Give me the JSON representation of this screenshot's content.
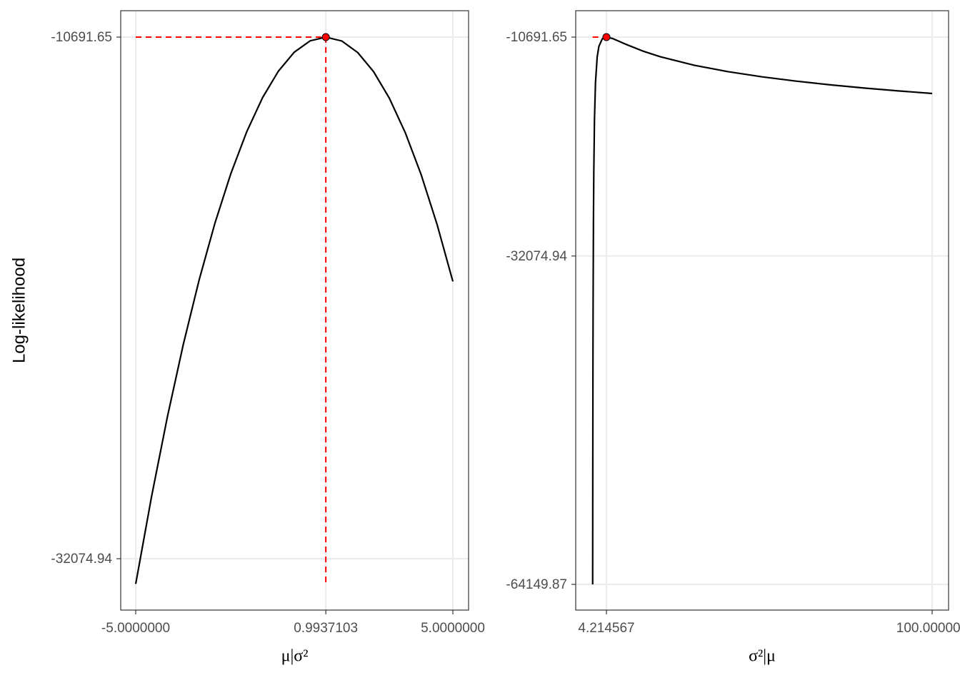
{
  "chart_data": [
    {
      "type": "line",
      "xlabel": "μ|σ²",
      "ylabel": "Log-likelihood",
      "x": [
        -5,
        -4.5,
        -4,
        -3.5,
        -3,
        -2.5,
        -2,
        -1.5,
        -1,
        -0.5,
        0,
        0.5,
        0.9937103,
        1.5,
        2,
        2.5,
        3,
        3.5,
        4,
        4.5,
        5
      ],
      "series": [
        {
          "color": "#000000",
          "values": [
            -33109,
            -29525,
            -26252,
            -23292,
            -20644,
            -18308,
            -16284,
            -14572,
            -13172,
            -12084,
            -11308,
            -10844,
            -10691.65,
            -10852,
            -11324,
            -12107,
            -13203,
            -14611,
            -16331,
            -18363,
            -20707
          ]
        }
      ],
      "mle": {
        "x": 0.9937103,
        "y": -10691.65,
        "color": "#ff0000",
        "guides": [
          "h",
          "v"
        ]
      },
      "xlim": [
        -5.473,
        5.495
      ],
      "ylim": [
        -34181,
        -9609
      ],
      "xticks": [
        {
          "value": -5,
          "label": "-5.0000000"
        },
        0.9937103,
        {
          "value": 5,
          "label": "5.0000000"
        }
      ],
      "yticks": [
        -10691.65,
        -32074.94
      ],
      "grid": true
    },
    {
      "type": "line",
      "xlabel": "σ²|μ",
      "x": [
        0.164,
        0.2,
        0.25,
        0.3,
        0.4,
        0.5,
        0.7,
        1,
        1.5,
        2,
        3,
        4.214567,
        6,
        8,
        10,
        15,
        20,
        30,
        40,
        50,
        60,
        70,
        80,
        90,
        100
      ],
      "series": [
        {
          "color": "#000000",
          "values": [
            -64151,
            -53118,
            -43171,
            -36624,
            -28587,
            -23893,
            -18730,
            -15118,
            -12627,
            -11594,
            -10853,
            -10691.65,
            -10830,
            -11110,
            -11403,
            -12064,
            -12606,
            -13441,
            -14070,
            -14574,
            -14993,
            -15353,
            -15667,
            -15945,
            -16196
          ]
        }
      ],
      "mle": {
        "x": 4.214567,
        "y": -10691.65,
        "color": "#ff0000",
        "guides": [
          "h"
        ]
      },
      "xlim": [
        -4.818,
        104.83
      ],
      "ylim": [
        -66659,
        -8113
      ],
      "xticks": [
        4.214567,
        {
          "value": 100,
          "label": "100.000000"
        }
      ],
      "yticks": [
        -10691.65,
        -32074.94,
        -64149.87
      ],
      "grid": true
    }
  ]
}
